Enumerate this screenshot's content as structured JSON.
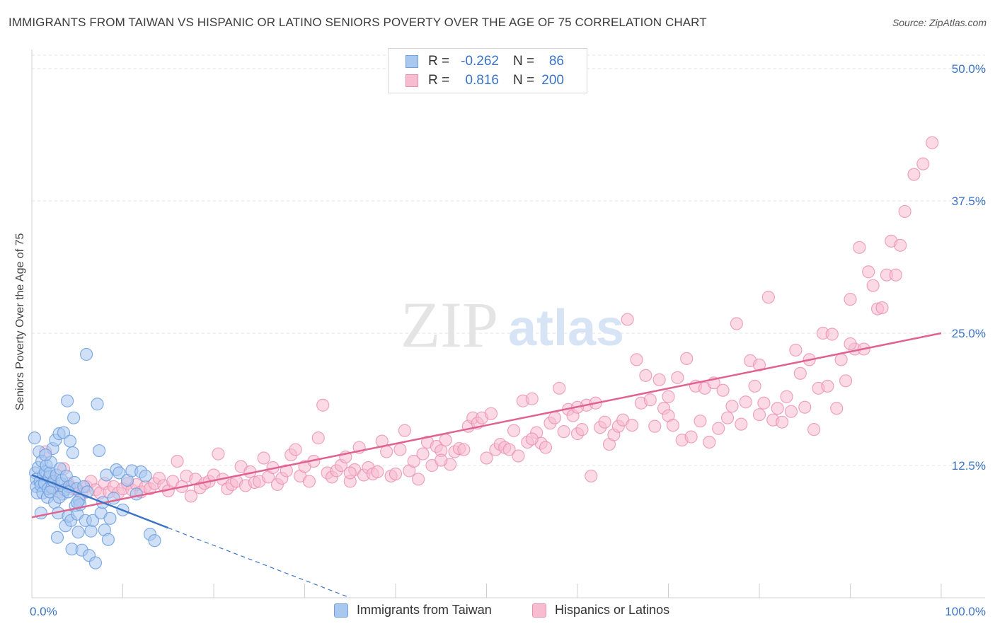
{
  "title": "IMMIGRANTS FROM TAIWAN VS HISPANIC OR LATINO SENIORS POVERTY OVER THE AGE OF 75 CORRELATION CHART",
  "source": "Source: ZipAtlas.com",
  "watermark": {
    "zip": "ZIP",
    "atlas": "atlas"
  },
  "legend_top": {
    "rows": [
      {
        "r_label": "R =",
        "r_value": "-0.262",
        "n_label": "N =",
        "n_value": "86",
        "color": "#a9c8f0",
        "border": "#6f9fde"
      },
      {
        "r_label": "R =",
        "r_value": "0.816",
        "n_label": "N =",
        "n_value": "200",
        "color": "#f7bcd0",
        "border": "#ea8fb0"
      }
    ]
  },
  "legend_bottom": [
    {
      "label": "Immigrants from Taiwan",
      "color": "#a9c8f0",
      "border": "#6f9fde"
    },
    {
      "label": "Hispanics or Latinos",
      "color": "#f7bcd0",
      "border": "#ea8fb0"
    }
  ],
  "chart_data": {
    "type": "scatter",
    "title": "IMMIGRANTS FROM TAIWAN VS HISPANIC OR LATINO SENIORS POVERTY OVER THE AGE OF 75 CORRELATION CHART",
    "xlabel": "",
    "ylabel": "Seniors Poverty Over the Age of 75",
    "xlim": [
      0,
      100
    ],
    "ylim": [
      0,
      52
    ],
    "x_tick_labels": [
      "0.0%",
      "100.0%"
    ],
    "y_ticks": [
      12.5,
      25.0,
      37.5,
      50.0
    ],
    "y_tick_labels": [
      "12.5%",
      "25.0%",
      "37.5%",
      "50.0%"
    ],
    "grid": "horizontal dashed",
    "colors": {
      "blue": "#6f9fde",
      "blue_fill": "#a9c8f0",
      "pink": "#ea8fb0",
      "pink_fill": "#f7bcd0",
      "blue_line": "#3a73c4",
      "pink_line": "#e0628f"
    },
    "series": [
      {
        "name": "Immigrants from Taiwan",
        "trend": {
          "x": [
            0,
            15
          ],
          "y": [
            11.6,
            6.6
          ],
          "dashed_to": [
            35,
            0
          ]
        },
        "points": [
          [
            0.3,
            15.1
          ],
          [
            0.4,
            11.8
          ],
          [
            0.5,
            11.2
          ],
          [
            0.5,
            10.5
          ],
          [
            0.6,
            9.9
          ],
          [
            0.7,
            12.3
          ],
          [
            0.8,
            13.8
          ],
          [
            0.9,
            11.0
          ],
          [
            1.0,
            10.6
          ],
          [
            1.1,
            12.9
          ],
          [
            1.2,
            9.9
          ],
          [
            1.3,
            11.6
          ],
          [
            1.4,
            10.8
          ],
          [
            1.5,
            11.9
          ],
          [
            1.6,
            12.5
          ],
          [
            1.7,
            9.5
          ],
          [
            1.8,
            10.3
          ],
          [
            1.9,
            11.4
          ],
          [
            2.0,
            11.8
          ],
          [
            2.1,
            12.8
          ],
          [
            2.2,
            10.4
          ],
          [
            2.3,
            14.1
          ],
          [
            2.4,
            11.0
          ],
          [
            2.5,
            9.0
          ],
          [
            2.6,
            14.9
          ],
          [
            2.7,
            11.6
          ],
          [
            2.8,
            5.7
          ],
          [
            2.9,
            8.0
          ],
          [
            3.0,
            15.5
          ],
          [
            3.1,
            12.2
          ],
          [
            3.2,
            10.8
          ],
          [
            3.3,
            11.1
          ],
          [
            3.4,
            9.8
          ],
          [
            3.5,
            15.6
          ],
          [
            3.6,
            10.2
          ],
          [
            3.7,
            6.8
          ],
          [
            3.8,
            11.5
          ],
          [
            3.9,
            18.6
          ],
          [
            4.0,
            7.7
          ],
          [
            4.1,
            10.5
          ],
          [
            4.2,
            14.8
          ],
          [
            4.3,
            7.3
          ],
          [
            4.4,
            4.6
          ],
          [
            4.5,
            13.7
          ],
          [
            4.6,
            17.0
          ],
          [
            4.7,
            10.9
          ],
          [
            4.8,
            8.7
          ],
          [
            4.9,
            10.3
          ],
          [
            5.0,
            7.9
          ],
          [
            5.1,
            6.2
          ],
          [
            5.2,
            9.2
          ],
          [
            5.3,
            8.8
          ],
          [
            5.5,
            4.5
          ],
          [
            5.7,
            10.5
          ],
          [
            5.9,
            7.3
          ],
          [
            6.0,
            23.0
          ],
          [
            6.1,
            10.0
          ],
          [
            6.3,
            4.0
          ],
          [
            6.5,
            6.3
          ],
          [
            6.7,
            7.3
          ],
          [
            7.0,
            3.3
          ],
          [
            7.2,
            18.3
          ],
          [
            7.4,
            13.9
          ],
          [
            7.6,
            8.0
          ],
          [
            7.8,
            9.0
          ],
          [
            8.0,
            6.4
          ],
          [
            8.2,
            11.6
          ],
          [
            8.4,
            5.5
          ],
          [
            8.6,
            7.5
          ],
          [
            9.0,
            9.4
          ],
          [
            9.3,
            12.1
          ],
          [
            9.6,
            11.8
          ],
          [
            10.0,
            8.3
          ],
          [
            10.5,
            11.1
          ],
          [
            11.0,
            12.0
          ],
          [
            11.5,
            9.8
          ],
          [
            12.0,
            11.9
          ],
          [
            12.5,
            11.5
          ],
          [
            13.0,
            6.0
          ],
          [
            13.5,
            5.4
          ],
          [
            1.0,
            8.0
          ],
          [
            1.5,
            13.5
          ],
          [
            2.0,
            10.0
          ],
          [
            3.0,
            9.5
          ],
          [
            4.0,
            10.0
          ],
          [
            5.0,
            9.0
          ]
        ]
      },
      {
        "name": "Hispanics or Latinos",
        "trend": {
          "x": [
            0,
            100
          ],
          "y": [
            7.6,
            25.0
          ]
        },
        "points": [
          [
            1.5,
            13.8
          ],
          [
            2.0,
            11.5
          ],
          [
            2.5,
            10.5
          ],
          [
            3.0,
            10.0
          ],
          [
            3.5,
            12.2
          ],
          [
            4.0,
            10.8
          ],
          [
            4.5,
            10.3
          ],
          [
            5.0,
            10.2
          ],
          [
            5.5,
            9.8
          ],
          [
            6.0,
            10.5
          ],
          [
            6.5,
            11.0
          ],
          [
            7.0,
            10.2
          ],
          [
            7.5,
            9.9
          ],
          [
            8.0,
            10.8
          ],
          [
            8.5,
            10.0
          ],
          [
            9.0,
            10.5
          ],
          [
            9.5,
            9.9
          ],
          [
            10.0,
            10.3
          ],
          [
            10.5,
            10.8
          ],
          [
            11.0,
            10.2
          ],
          [
            11.5,
            10.7
          ],
          [
            12.0,
            10.0
          ],
          [
            12.5,
            10.5
          ],
          [
            13.0,
            10.3
          ],
          [
            13.5,
            10.8
          ],
          [
            14.0,
            11.3
          ],
          [
            14.5,
            10.6
          ],
          [
            15.0,
            10.1
          ],
          [
            15.5,
            11.0
          ],
          [
            16.0,
            12.9
          ],
          [
            16.5,
            10.5
          ],
          [
            17.0,
            11.5
          ],
          [
            17.5,
            9.6
          ],
          [
            18.0,
            11.2
          ],
          [
            18.5,
            10.4
          ],
          [
            19.0,
            10.8
          ],
          [
            19.5,
            11.0
          ],
          [
            20.0,
            11.6
          ],
          [
            20.5,
            13.6
          ],
          [
            21.0,
            11.2
          ],
          [
            21.5,
            10.3
          ],
          [
            22.0,
            10.7
          ],
          [
            22.5,
            11.0
          ],
          [
            23.0,
            12.4
          ],
          [
            23.5,
            10.6
          ],
          [
            24.0,
            11.9
          ],
          [
            24.5,
            10.9
          ],
          [
            25.0,
            11.0
          ],
          [
            25.5,
            13.2
          ],
          [
            26.0,
            11.4
          ],
          [
            26.5,
            12.3
          ],
          [
            27.0,
            10.7
          ],
          [
            27.5,
            11.3
          ],
          [
            28.0,
            12.0
          ],
          [
            28.5,
            13.5
          ],
          [
            29.0,
            14.0
          ],
          [
            29.5,
            11.5
          ],
          [
            30.0,
            12.4
          ],
          [
            30.5,
            11.0
          ],
          [
            31.0,
            12.9
          ],
          [
            31.5,
            15.1
          ],
          [
            32.0,
            18.2
          ],
          [
            32.5,
            11.8
          ],
          [
            33.0,
            11.4
          ],
          [
            33.5,
            12.0
          ],
          [
            34.0,
            12.5
          ],
          [
            34.5,
            13.3
          ],
          [
            35.0,
            11.0
          ],
          [
            35.5,
            12.1
          ],
          [
            36.0,
            14.2
          ],
          [
            36.5,
            11.6
          ],
          [
            37.0,
            12.3
          ],
          [
            37.5,
            11.7
          ],
          [
            38.0,
            11.9
          ],
          [
            38.5,
            14.8
          ],
          [
            39.0,
            13.8
          ],
          [
            39.5,
            11.5
          ],
          [
            40.0,
            11.7
          ],
          [
            40.5,
            14.0
          ],
          [
            41.0,
            15.8
          ],
          [
            41.5,
            12.0
          ],
          [
            42.0,
            12.9
          ],
          [
            42.5,
            11.2
          ],
          [
            43.0,
            13.6
          ],
          [
            43.5,
            14.7
          ],
          [
            44.0,
            12.5
          ],
          [
            44.5,
            14.3
          ],
          [
            45.0,
            13.9
          ],
          [
            45.5,
            14.9
          ],
          [
            46.0,
            12.6
          ],
          [
            46.5,
            13.8
          ],
          [
            47.0,
            14.1
          ],
          [
            47.5,
            14.0
          ],
          [
            48.0,
            16.2
          ],
          [
            48.5,
            17.0
          ],
          [
            49.0,
            16.5
          ],
          [
            49.5,
            17.0
          ],
          [
            50.0,
            13.2
          ],
          [
            50.5,
            17.4
          ],
          [
            51.0,
            14.0
          ],
          [
            51.5,
            14.5
          ],
          [
            52.0,
            14.2
          ],
          [
            52.5,
            14.0
          ],
          [
            53.0,
            15.8
          ],
          [
            53.5,
            13.4
          ],
          [
            54.0,
            18.6
          ],
          [
            54.5,
            14.7
          ],
          [
            55.0,
            18.8
          ],
          [
            55.5,
            15.6
          ],
          [
            56.0,
            14.6
          ],
          [
            56.5,
            14.2
          ],
          [
            57.0,
            16.5
          ],
          [
            57.5,
            17.0
          ],
          [
            58.0,
            19.8
          ],
          [
            58.5,
            15.7
          ],
          [
            59.0,
            17.8
          ],
          [
            59.5,
            17.2
          ],
          [
            60.0,
            15.5
          ],
          [
            60.5,
            15.9
          ],
          [
            61.0,
            18.2
          ],
          [
            61.5,
            11.5
          ],
          [
            62.0,
            18.4
          ],
          [
            62.5,
            16.1
          ],
          [
            63.0,
            16.6
          ],
          [
            63.5,
            14.5
          ],
          [
            64.0,
            15.4
          ],
          [
            64.5,
            16.2
          ],
          [
            65.0,
            16.8
          ],
          [
            65.5,
            26.3
          ],
          [
            66.0,
            16.3
          ],
          [
            66.5,
            22.5
          ],
          [
            67.0,
            18.4
          ],
          [
            67.5,
            21.0
          ],
          [
            68.0,
            18.7
          ],
          [
            68.5,
            16.2
          ],
          [
            69.0,
            20.6
          ],
          [
            69.5,
            17.9
          ],
          [
            70.0,
            17.2
          ],
          [
            70.5,
            16.3
          ],
          [
            71.0,
            20.8
          ],
          [
            71.5,
            14.9
          ],
          [
            72.0,
            22.6
          ],
          [
            72.5,
            15.2
          ],
          [
            73.0,
            20.0
          ],
          [
            73.5,
            16.7
          ],
          [
            74.0,
            19.8
          ],
          [
            74.5,
            14.7
          ],
          [
            75.0,
            20.3
          ],
          [
            75.5,
            16.0
          ],
          [
            76.0,
            19.6
          ],
          [
            76.5,
            17.0
          ],
          [
            77.0,
            18.1
          ],
          [
            77.5,
            25.9
          ],
          [
            78.0,
            16.4
          ],
          [
            78.5,
            18.5
          ],
          [
            79.0,
            22.4
          ],
          [
            79.5,
            20.0
          ],
          [
            80.0,
            17.3
          ],
          [
            80.5,
            18.4
          ],
          [
            81.0,
            28.4
          ],
          [
            81.5,
            16.8
          ],
          [
            82.0,
            17.9
          ],
          [
            82.5,
            16.6
          ],
          [
            83.0,
            19.0
          ],
          [
            83.5,
            17.6
          ],
          [
            84.0,
            23.4
          ],
          [
            84.5,
            21.2
          ],
          [
            85.0,
            18.0
          ],
          [
            85.5,
            22.5
          ],
          [
            86.0,
            15.9
          ],
          [
            86.5,
            19.8
          ],
          [
            87.0,
            25.0
          ],
          [
            87.5,
            20.0
          ],
          [
            88.0,
            24.9
          ],
          [
            88.5,
            17.9
          ],
          [
            89.0,
            22.5
          ],
          [
            89.5,
            20.5
          ],
          [
            90.0,
            28.2
          ],
          [
            90.5,
            23.5
          ],
          [
            91.0,
            33.1
          ],
          [
            91.5,
            23.5
          ],
          [
            92.0,
            30.8
          ],
          [
            92.5,
            29.5
          ],
          [
            93.0,
            27.3
          ],
          [
            93.5,
            27.4
          ],
          [
            94.0,
            30.5
          ],
          [
            94.5,
            33.7
          ],
          [
            95.0,
            30.5
          ],
          [
            95.5,
            33.3
          ],
          [
            96.0,
            36.5
          ],
          [
            97.0,
            40.0
          ],
          [
            98.0,
            41.0
          ],
          [
            99.0,
            43.0
          ],
          [
            60.0,
            18.0
          ],
          [
            70.0,
            19.0
          ],
          [
            80.0,
            22.0
          ],
          [
            90.0,
            24.0
          ],
          [
            35.0,
            11.8
          ],
          [
            45.0,
            13.0
          ],
          [
            55.0,
            15.0
          ]
        ]
      }
    ]
  }
}
